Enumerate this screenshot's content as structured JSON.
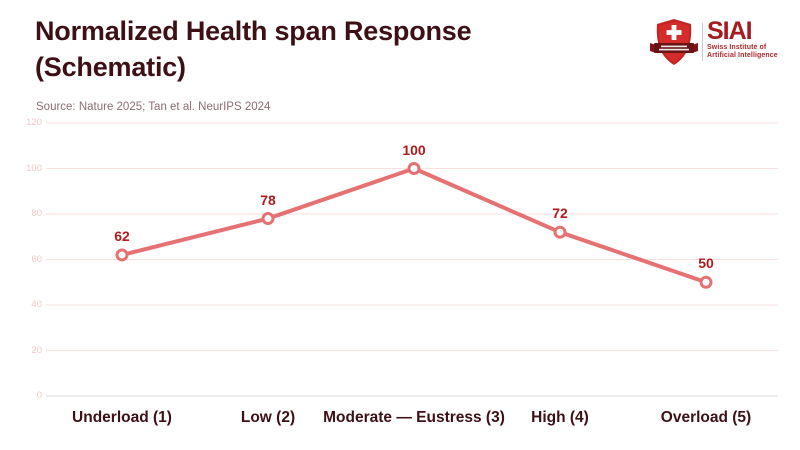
{
  "header": {
    "title": "Normalized Health span Response (Schematic)",
    "source": "Source: Nature 2025; Tan et al. NeurIPS 2024"
  },
  "logo": {
    "acronym": "SIAI",
    "subtitle_line1": "Swiss Institute of",
    "subtitle_line2": "Artificial Intelligence",
    "accent_color": "#a51c20",
    "shield_red": "#d42b2b",
    "shield_dark": "#6b1416"
  },
  "chart_data": {
    "type": "line",
    "title": "Normalized Health span Response (Schematic)",
    "categories": [
      "Underload (1)",
      "Low (2)",
      "Moderate — Eustress (3)",
      "High (4)",
      "Overload (5)"
    ],
    "values": [
      62,
      78,
      100,
      72,
      50
    ],
    "data_labels": [
      "62",
      "78",
      "100",
      "72",
      "50"
    ],
    "yticks": [
      0,
      20,
      40,
      60,
      80,
      100,
      120
    ],
    "ylim": [
      0,
      120
    ],
    "xlabel": "",
    "ylabel": "",
    "grid": "horizontal",
    "legend": "none",
    "colors": {
      "line": "#e57173",
      "marker_fill": "#ffffff",
      "data_label": "#b01b1e",
      "gridline": "#f8dfe0",
      "zero_line": "#d9d9d9",
      "tick_label": "#f3c6c7",
      "axis_label": "#3d1016"
    }
  }
}
